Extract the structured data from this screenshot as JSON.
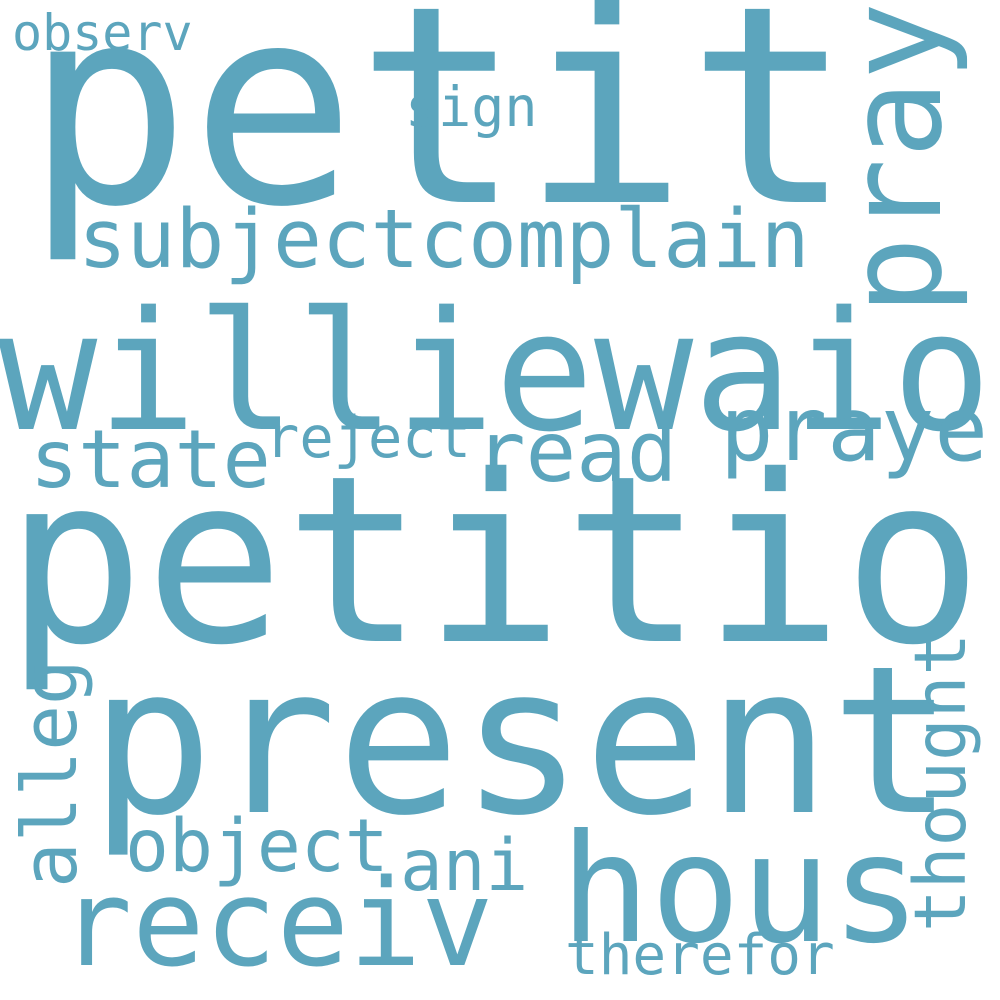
{
  "palette": {
    "background": "#ffffff",
    "word_color": "#5ca5bd"
  },
  "words": {
    "petit": "petit",
    "petition": "petition",
    "present": "present",
    "williewaiola": "williewaiola",
    "pray": "pray",
    "subjectcomplain": "subjectcomplain",
    "hous": "hous",
    "receiv": "receiv",
    "prayer": "prayer",
    "read": "read",
    "state": "state",
    "reject": "reject",
    "object": "object",
    "ani": "ani",
    "thought": "thought",
    "alleg": "alleg",
    "therefor": "therefor",
    "sign": "sign",
    "observ": "observ"
  }
}
